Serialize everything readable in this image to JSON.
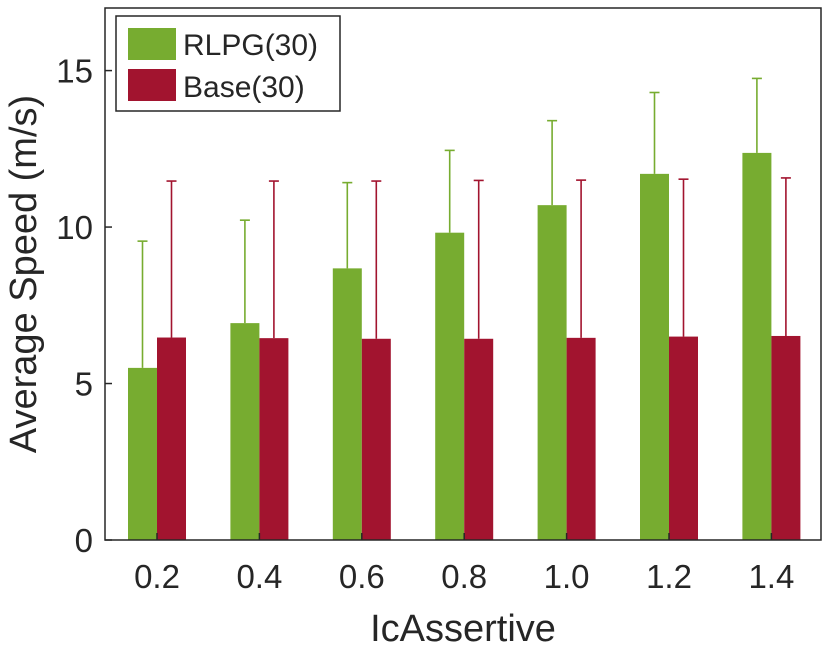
{
  "chart_data": {
    "type": "bar",
    "title": "",
    "xlabel": "IcAssertive",
    "ylabel": "Average Speed (m/s)",
    "categories": [
      "0.2",
      "0.4",
      "0.6",
      "0.8",
      "1.0",
      "1.2",
      "1.4"
    ],
    "ylim": [
      0,
      17
    ],
    "yticks": [
      "0",
      "5",
      "10",
      "15"
    ],
    "ytick_values": [
      0,
      5,
      10,
      15
    ],
    "grid": false,
    "legend_position": "top-left",
    "series": [
      {
        "name": "RLPG(30)",
        "color": "#77ac30",
        "values": [
          5.5,
          6.93,
          8.68,
          9.82,
          10.7,
          11.7,
          12.37
        ],
        "error_upper": [
          9.55,
          10.22,
          11.42,
          12.45,
          13.4,
          14.3,
          14.75
        ]
      },
      {
        "name": "Base(30)",
        "color": "#a2142f",
        "values": [
          6.47,
          6.45,
          6.43,
          6.43,
          6.46,
          6.5,
          6.52
        ],
        "error_upper": [
          11.47,
          11.47,
          11.47,
          11.49,
          11.5,
          11.53,
          11.57
        ]
      }
    ]
  }
}
